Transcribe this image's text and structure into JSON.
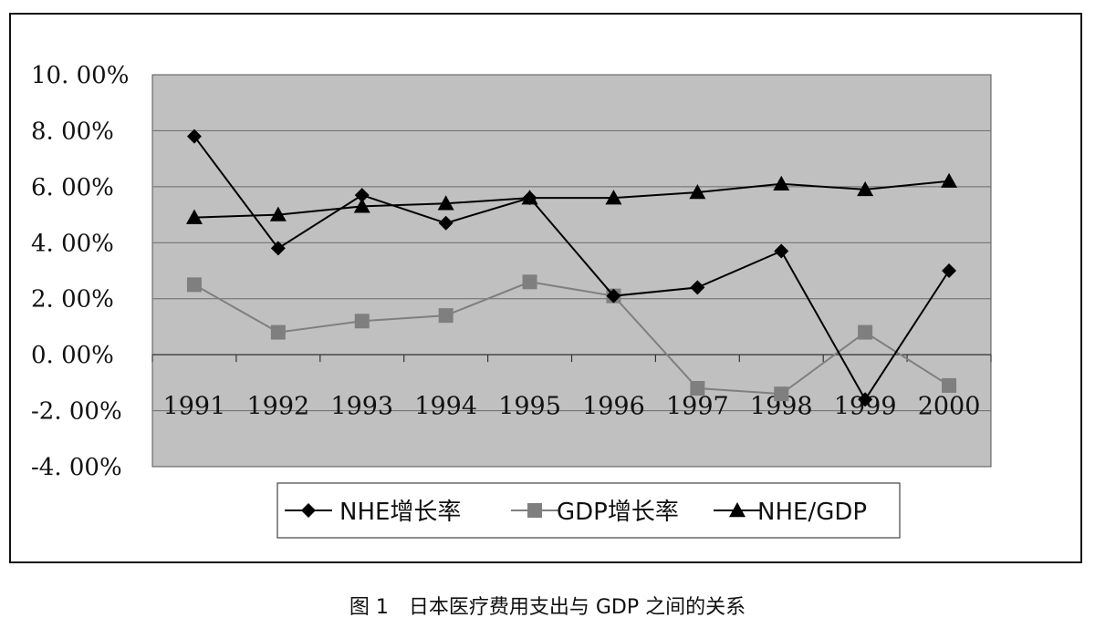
{
  "caption": "图 1　日本医疗费用支出与 GDP 之间的关系",
  "chart_data": {
    "type": "line",
    "categories": [
      "1991",
      "1992",
      "1993",
      "1994",
      "1995",
      "1996",
      "1997",
      "1998",
      "1999",
      "2000"
    ],
    "series": [
      {
        "name": "NHE增长率",
        "marker": "diamond",
        "color": "#000000",
        "values": [
          7.8,
          3.8,
          5.7,
          4.7,
          5.6,
          2.1,
          2.4,
          3.7,
          -1.6,
          3.0
        ]
      },
      {
        "name": "GDP增长率",
        "marker": "square",
        "color": "#7f7f7f",
        "values": [
          2.5,
          0.8,
          1.2,
          1.4,
          2.6,
          2.1,
          -1.2,
          -1.4,
          0.8,
          -1.1
        ]
      },
      {
        "name": "NHE/GDP",
        "marker": "triangle",
        "color": "#000000",
        "values": [
          4.9,
          5.0,
          5.3,
          5.4,
          5.6,
          5.6,
          5.8,
          6.1,
          5.9,
          6.2
        ]
      }
    ],
    "ylim": [
      -4,
      10
    ],
    "yticks": [
      10,
      8,
      6,
      4,
      2,
      0,
      -2,
      -4
    ],
    "ytick_labels": [
      "10. 00%",
      "8. 00%",
      "6. 00%",
      "4. 00%",
      "2. 00%",
      "0. 00%",
      "-2. 00%",
      "-4. 00%"
    ],
    "grid": true,
    "legend": "bottom",
    "plot_background": "#c0c0c0",
    "title": "",
    "xlabel": "",
    "ylabel": ""
  }
}
